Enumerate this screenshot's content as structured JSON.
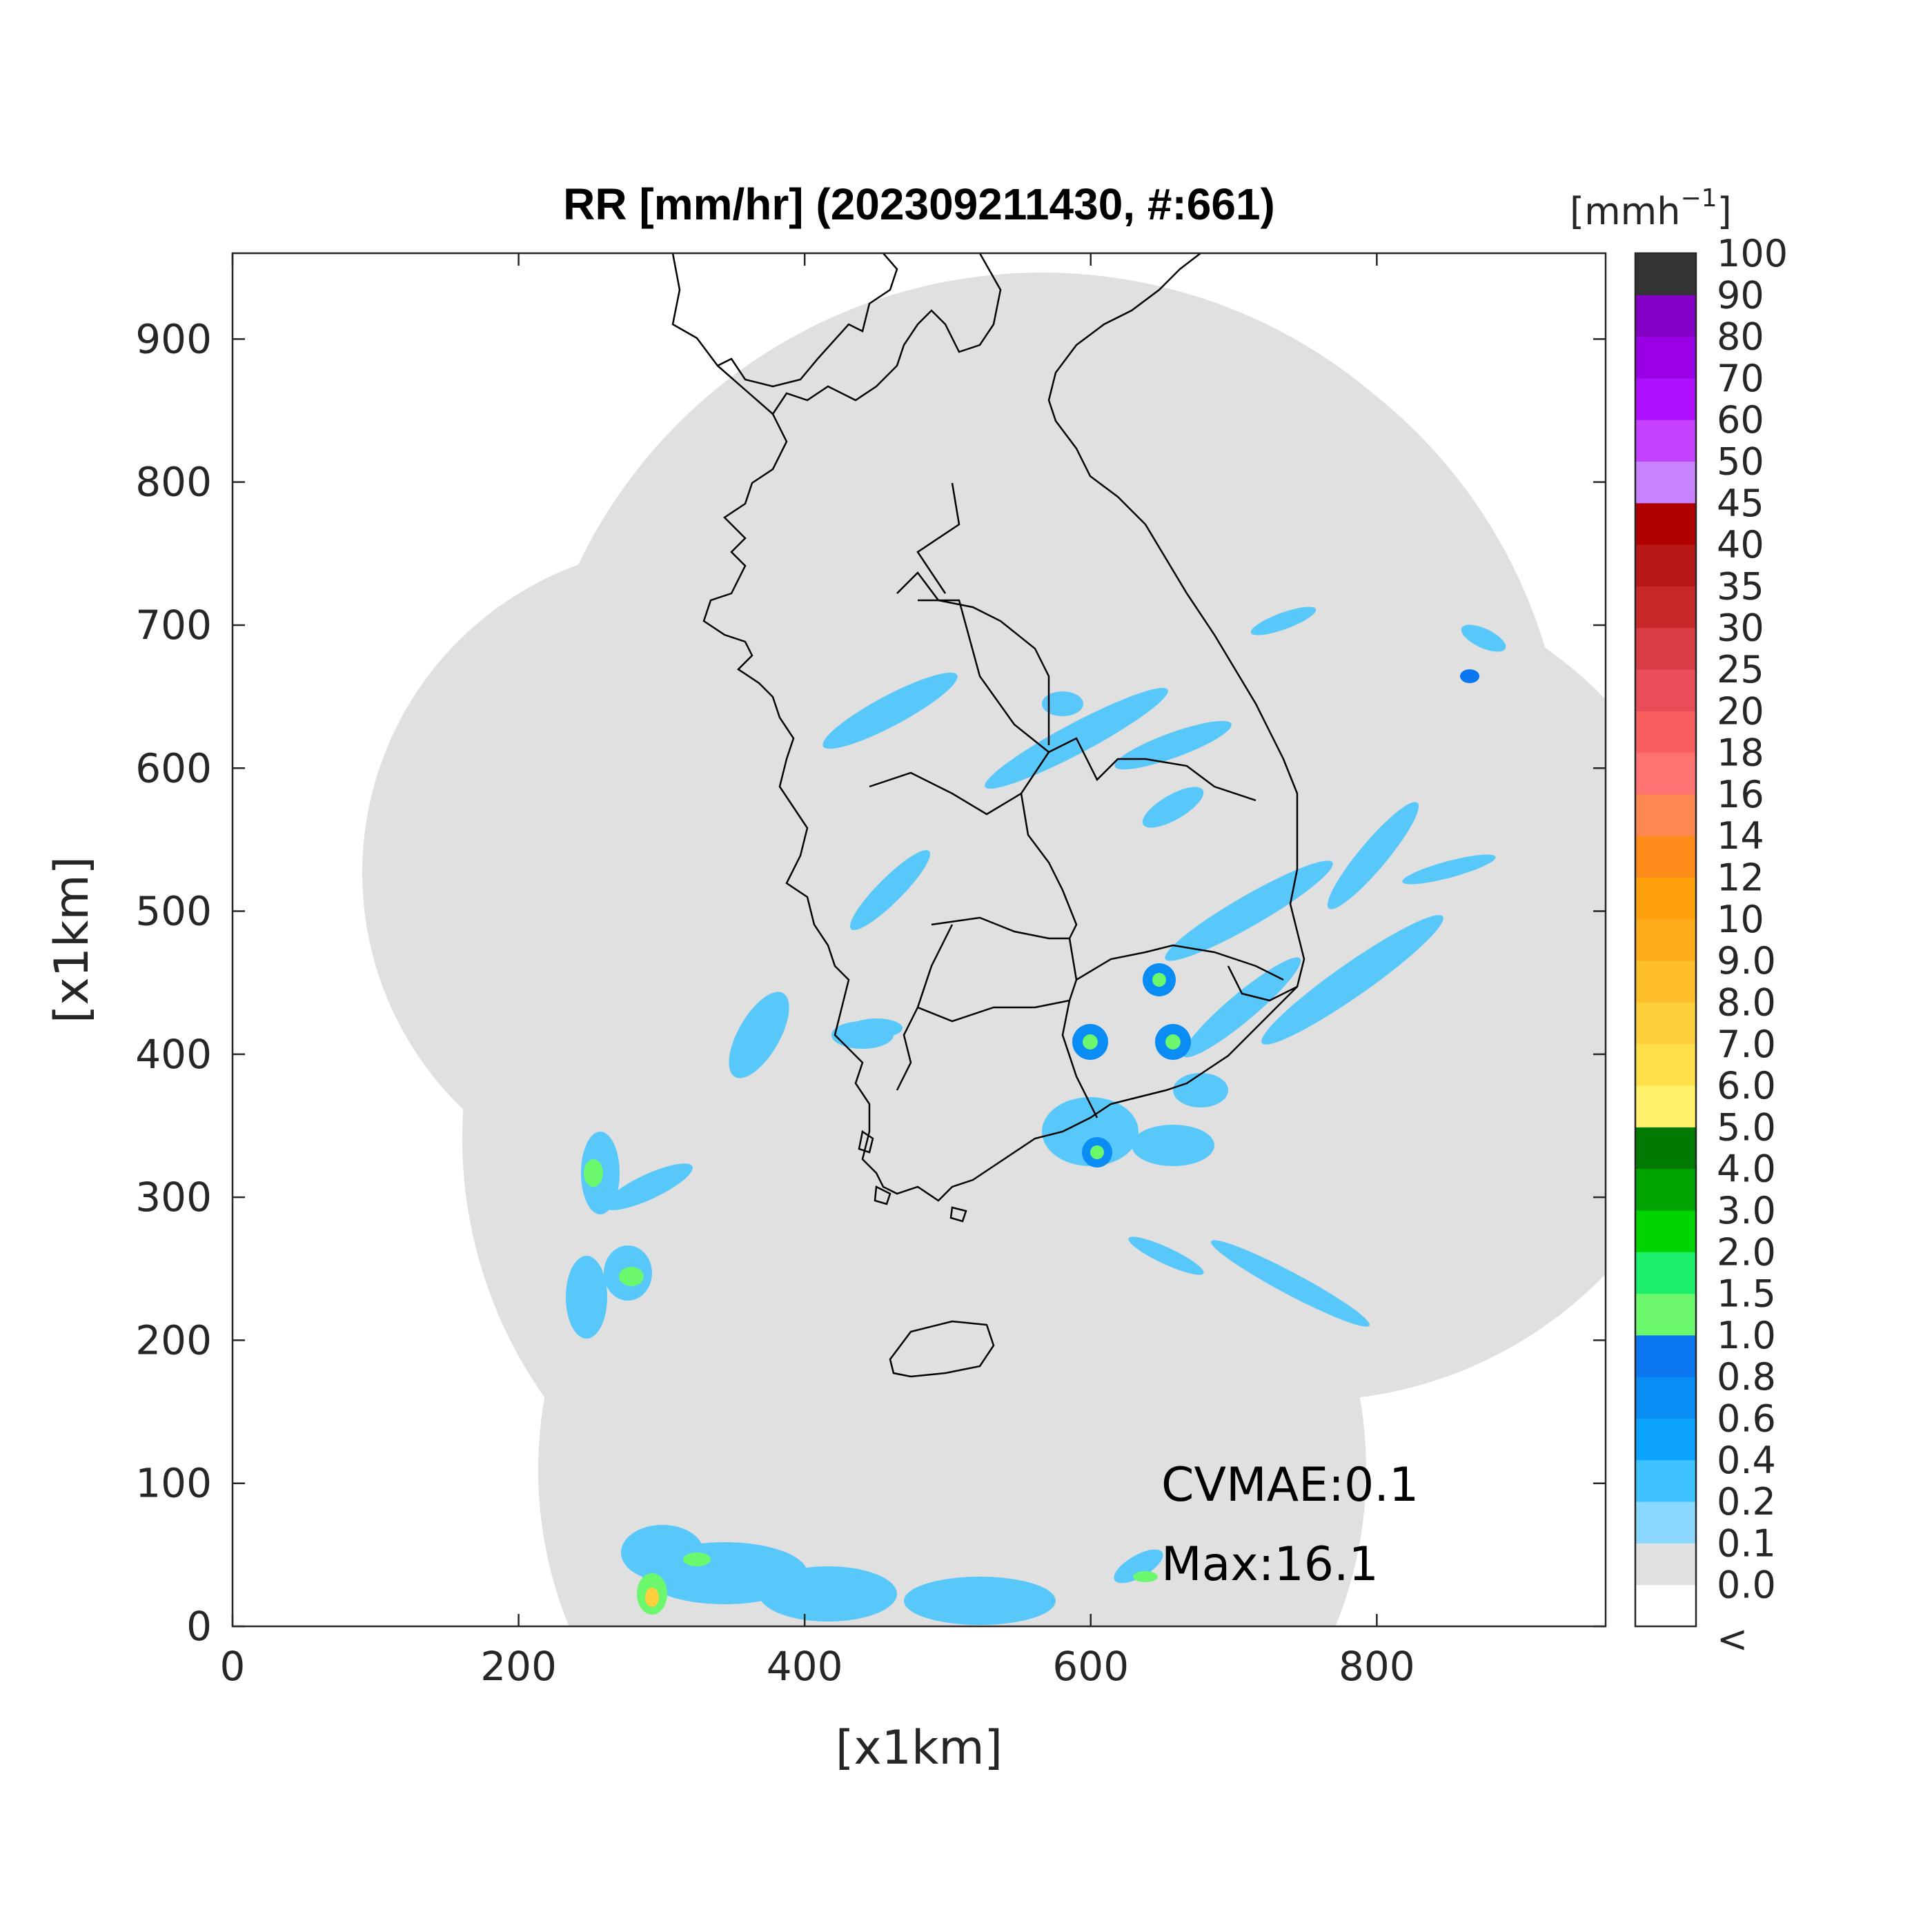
{
  "title": "RR [mm/hr] (202309211430, #:661)",
  "xlabel": "[x1km]",
  "ylabel": "[x1km]",
  "x_ticks": [
    "0",
    "200",
    "400",
    "600",
    "800"
  ],
  "y_ticks": [
    "0",
    "100",
    "200",
    "300",
    "400",
    "500",
    "600",
    "700",
    "800",
    "900"
  ],
  "colorbar": {
    "unit_label": "[mmh",
    "unit_sup": "−1",
    "unit_close": "]",
    "levels": [
      "<",
      "0.0",
      "0.1",
      "0.2",
      "0.4",
      "0.6",
      "0.8",
      "1.0",
      "1.5",
      "2.0",
      "3.0",
      "4.0",
      "5.0",
      "6.0",
      "7.0",
      "8.0",
      "9.0",
      "10",
      "12",
      "14",
      "16",
      "18",
      "20",
      "25",
      "30",
      "35",
      "40",
      "45",
      "50",
      "60",
      "70",
      "80",
      "90",
      "100"
    ],
    "colors": [
      "#ffffff",
      "#e0e0e0",
      "#8ad8ff",
      "#3fc3ff",
      "#0ca4ff",
      "#0a8cf5",
      "#0a77f0",
      "#6cf86c",
      "#1ff06c",
      "#00d400",
      "#00a400",
      "#007a00",
      "#fff06c",
      "#ffe04a",
      "#ffd03c",
      "#ffbf2a",
      "#ffad1a",
      "#ffa00a",
      "#ff8c1a",
      "#ff8850",
      "#ff7272",
      "#f86060",
      "#e84e5a",
      "#d83c44",
      "#c82828",
      "#b81818",
      "#b00000",
      "#c682ff",
      "#c442ff",
      "#ae10ff",
      "#9a00e6",
      "#8400c4",
      "#333333"
    ]
  },
  "annotations": {
    "cvmae": "CVMAE:0.1",
    "max": "Max:16.1"
  },
  "map": {
    "x_range_km": [
      0,
      960
    ],
    "y_range_km": [
      0,
      960
    ],
    "background_color": "#e0e0e0",
    "no_data_color": "#ffffff",
    "coastline_color": "#000000"
  }
}
